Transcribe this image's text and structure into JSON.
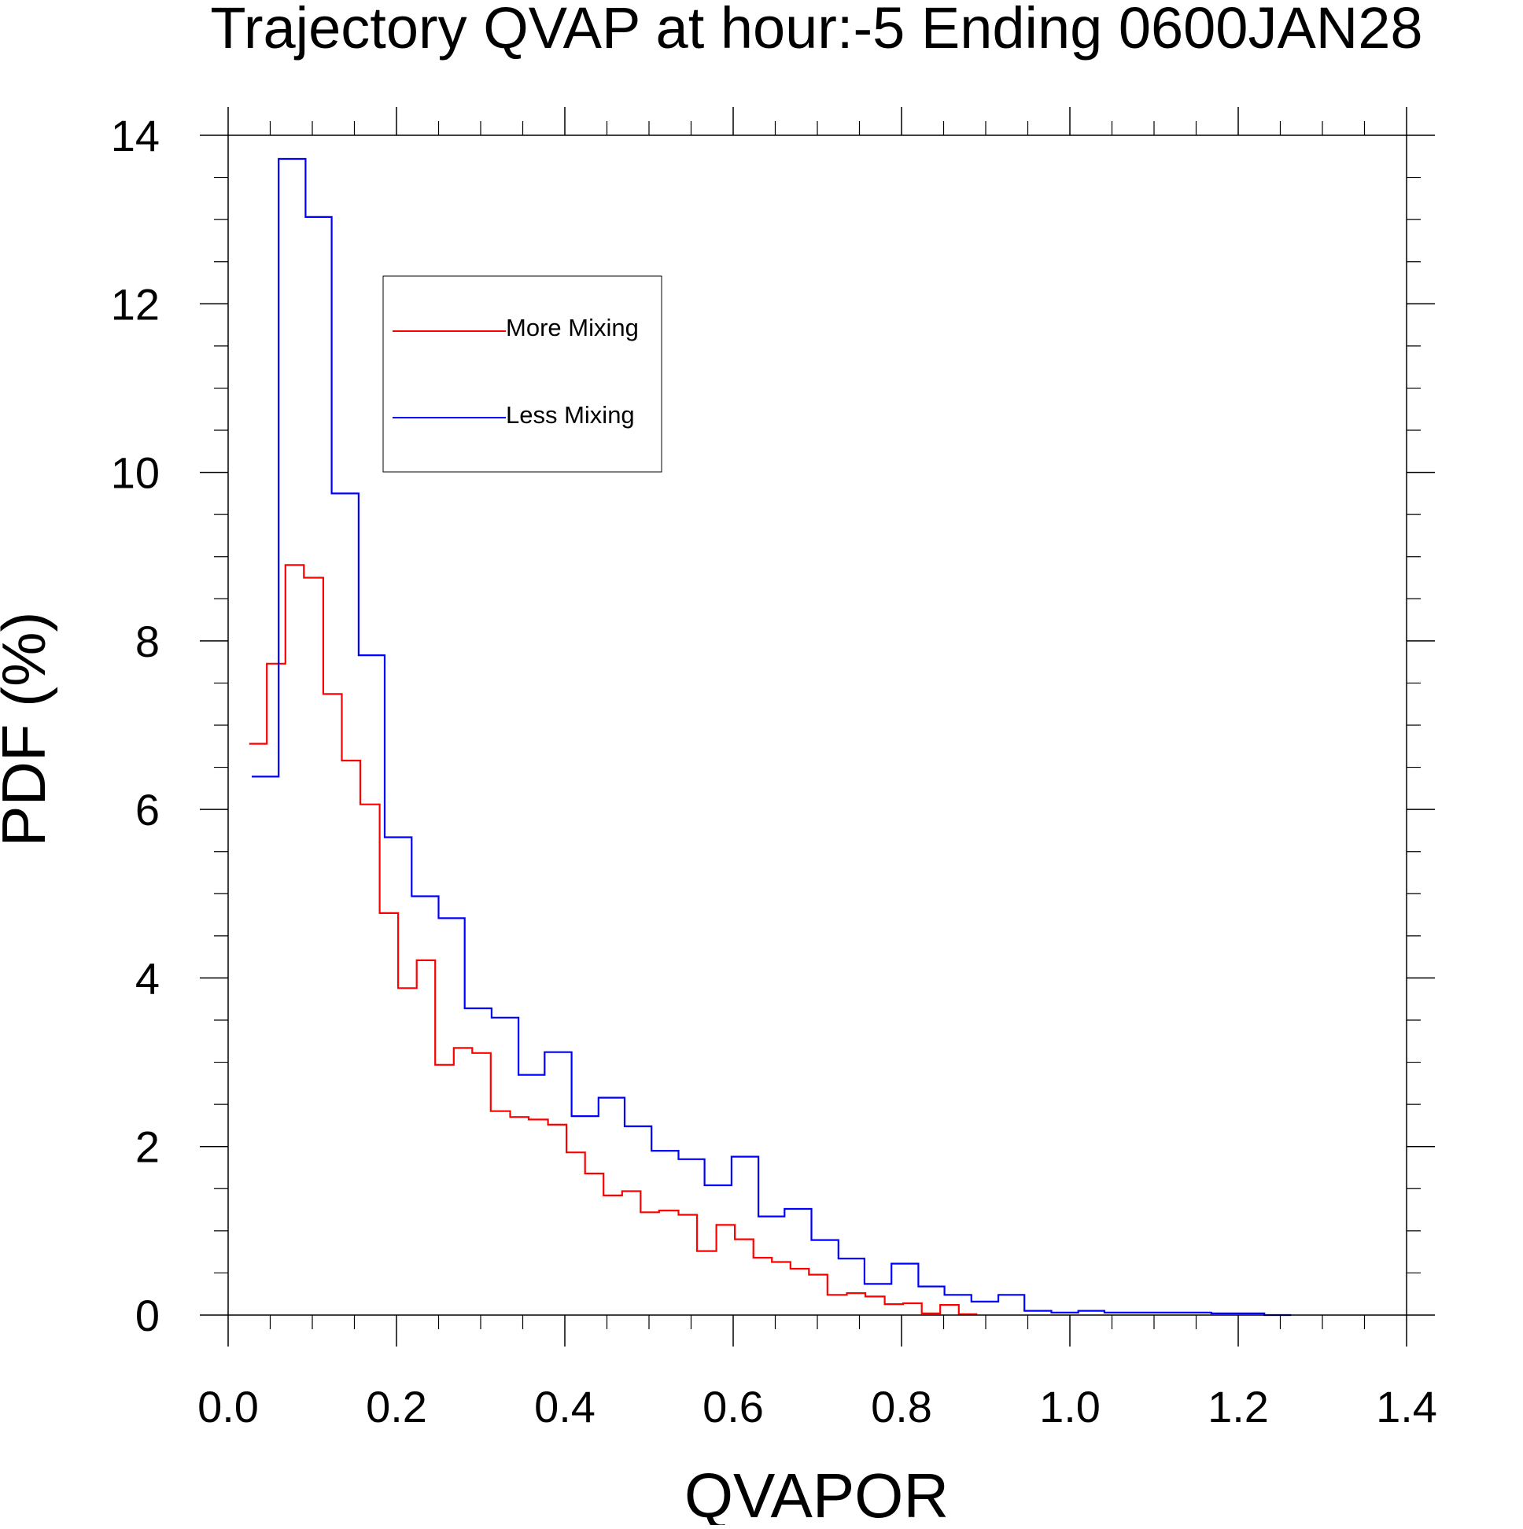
{
  "chart_data": {
    "type": "line",
    "style": "step-histogram",
    "title": "Trajectory QVAP at hour:-5 Ending 0600JAN28",
    "xlabel": "QVAPOR",
    "ylabel": "PDF (%)",
    "xlim": [
      0.0,
      1.4
    ],
    "ylim": [
      0,
      14
    ],
    "xticks": [
      {
        "value": 0.0,
        "label": "0.0"
      },
      {
        "value": 0.2,
        "label": "0.2"
      },
      {
        "value": 0.4,
        "label": "0.4"
      },
      {
        "value": 0.6,
        "label": "0.6"
      },
      {
        "value": 0.8,
        "label": "0.8"
      },
      {
        "value": 1.0,
        "label": "1.0"
      },
      {
        "value": 1.2,
        "label": "1.2"
      },
      {
        "value": 1.4,
        "label": "1.4"
      }
    ],
    "yticks": [
      {
        "value": 0,
        "label": "0"
      },
      {
        "value": 2,
        "label": "2"
      },
      {
        "value": 4,
        "label": "4"
      },
      {
        "value": 6,
        "label": "6"
      },
      {
        "value": 8,
        "label": "8"
      },
      {
        "value": 10,
        "label": "10"
      },
      {
        "value": 12,
        "label": "12"
      },
      {
        "value": 14,
        "label": "14"
      }
    ],
    "grid": false,
    "legend_position": "top-left-inside",
    "series": [
      {
        "name": "More Mixing",
        "color": "#ff0000",
        "edges": [
          0.025,
          0.046,
          0.068,
          0.09,
          0.113,
          0.135,
          0.157,
          0.18,
          0.202,
          0.224,
          0.246,
          0.268,
          0.29,
          0.312,
          0.335,
          0.357,
          0.38,
          0.402,
          0.424,
          0.446,
          0.468,
          0.49,
          0.512,
          0.535,
          0.557,
          0.58,
          0.602,
          0.624,
          0.646,
          0.668,
          0.69,
          0.712,
          0.735,
          0.757,
          0.78,
          0.802,
          0.824,
          0.846,
          0.868,
          0.89
        ],
        "values": [
          6.78,
          7.73,
          8.9,
          8.75,
          7.37,
          6.58,
          6.06,
          4.77,
          3.88,
          4.21,
          2.97,
          3.17,
          3.11,
          2.42,
          2.35,
          2.32,
          2.26,
          1.93,
          1.68,
          1.42,
          1.47,
          1.22,
          1.24,
          1.19,
          0.76,
          1.07,
          0.9,
          0.68,
          0.63,
          0.55,
          0.48,
          0.24,
          0.26,
          0.22,
          0.13,
          0.14,
          0.02,
          0.12,
          0.01
        ]
      },
      {
        "name": "Less Mixing",
        "color": "#0000ff",
        "edges": [
          0.028,
          0.06,
          0.092,
          0.123,
          0.155,
          0.186,
          0.218,
          0.25,
          0.281,
          0.313,
          0.345,
          0.376,
          0.408,
          0.44,
          0.471,
          0.503,
          0.535,
          0.566,
          0.598,
          0.63,
          0.661,
          0.693,
          0.725,
          0.756,
          0.788,
          0.82,
          0.851,
          0.883,
          0.915,
          0.946,
          0.978,
          1.01,
          1.041,
          1.073,
          1.105,
          1.136,
          1.168,
          1.2,
          1.231,
          1.263
        ],
        "values": [
          6.39,
          13.72,
          13.03,
          9.75,
          7.83,
          5.67,
          4.97,
          4.71,
          3.64,
          3.53,
          2.85,
          3.12,
          2.36,
          2.58,
          2.24,
          1.95,
          1.85,
          1.54,
          1.88,
          1.17,
          1.26,
          0.89,
          0.67,
          0.37,
          0.61,
          0.34,
          0.24,
          0.16,
          0.24,
          0.05,
          0.03,
          0.05,
          0.03,
          0.03,
          0.03,
          0.03,
          0.02,
          0.02,
          0.0
        ]
      }
    ]
  }
}
